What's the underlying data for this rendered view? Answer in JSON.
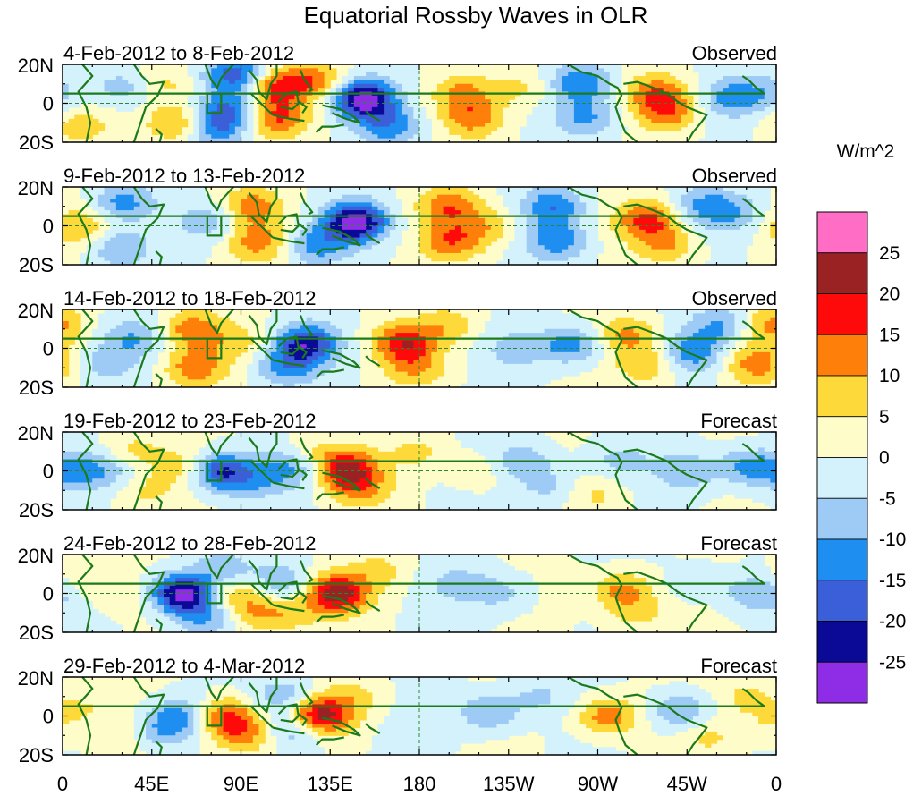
{
  "chart_data": {
    "type": "heatmap",
    "title": "Equatorial Rossby Waves in OLR",
    "colorbar": {
      "units": "W/m^2",
      "levels": [
        -30,
        -25,
        -20,
        -15,
        -10,
        -5,
        0,
        5,
        10,
        15,
        20,
        25,
        30
      ],
      "tick_labels": [
        "25",
        "20",
        "15",
        "10",
        "5",
        "0",
        "-5",
        "-10",
        "-15",
        "-20",
        "-25"
      ],
      "colors": [
        "#8f2ce6",
        "#0a0a96",
        "#3b5fd8",
        "#1e8ef0",
        "#9ecbf5",
        "#d4f2fb",
        "#fefcc8",
        "#fed93a",
        "#fe7f0a",
        "#fe0a0a",
        "#9a2222",
        "#ff6ec4"
      ]
    },
    "x_tick_labels": [
      "0",
      "45E",
      "90E",
      "135E",
      "180",
      "135W",
      "90W",
      "45W",
      "0"
    ],
    "x_tick_longitudes": [
      0,
      45,
      90,
      135,
      180,
      225,
      270,
      315,
      360
    ],
    "y_tick_labels": [
      "20N",
      "0",
      "20S"
    ],
    "y_range_deg": [
      -20,
      20
    ],
    "panels": [
      {
        "dates": "4-Feb-2012 to 8-Feb-2012",
        "status": "Observed",
        "anomalies": [
          {
            "lon": 88,
            "lat": 15,
            "value": -18
          },
          {
            "lon": 85,
            "lat": -2,
            "value": -12
          },
          {
            "lon": 78,
            "lat": -12,
            "value": -14
          },
          {
            "lon": 107,
            "lat": 8,
            "value": 16
          },
          {
            "lon": 108,
            "lat": -8,
            "value": 14
          },
          {
            "lon": 128,
            "lat": 12,
            "value": 12
          },
          {
            "lon": 152,
            "lat": 2,
            "value": -28
          },
          {
            "lon": 165,
            "lat": -12,
            "value": -12
          },
          {
            "lon": 30,
            "lat": 8,
            "value": -9
          },
          {
            "lon": 8,
            "lat": -12,
            "value": 7
          },
          {
            "lon": 58,
            "lat": -10,
            "value": 12
          },
          {
            "lon": 52,
            "lat": 10,
            "value": 7
          },
          {
            "lon": 202,
            "lat": 5,
            "value": 10
          },
          {
            "lon": 207,
            "lat": -8,
            "value": 11
          },
          {
            "lon": 232,
            "lat": 8,
            "value": 6
          },
          {
            "lon": 262,
            "lat": 10,
            "value": -14
          },
          {
            "lon": 265,
            "lat": -8,
            "value": -10
          },
          {
            "lon": 300,
            "lat": 5,
            "value": 13
          },
          {
            "lon": 306,
            "lat": -5,
            "value": 11
          },
          {
            "lon": 338,
            "lat": 3,
            "value": -11
          },
          {
            "lon": 356,
            "lat": 6,
            "value": -6
          }
        ]
      },
      {
        "dates": "9-Feb-2012 to 13-Feb-2012",
        "status": "Observed",
        "anomalies": [
          {
            "lon": 148,
            "lat": 2,
            "value": -28
          },
          {
            "lon": 128,
            "lat": -10,
            "value": -12
          },
          {
            "lon": 95,
            "lat": 10,
            "value": 12
          },
          {
            "lon": 98,
            "lat": -8,
            "value": 12
          },
          {
            "lon": 75,
            "lat": 2,
            "value": -9
          },
          {
            "lon": 30,
            "lat": 12,
            "value": -12
          },
          {
            "lon": 28,
            "lat": -12,
            "value": -10
          },
          {
            "lon": 8,
            "lat": 0,
            "value": 9
          },
          {
            "lon": 195,
            "lat": 10,
            "value": 13
          },
          {
            "lon": 196,
            "lat": -8,
            "value": 13
          },
          {
            "lon": 215,
            "lat": 0,
            "value": 8
          },
          {
            "lon": 248,
            "lat": 10,
            "value": -14
          },
          {
            "lon": 250,
            "lat": -8,
            "value": -13
          },
          {
            "lon": 295,
            "lat": 3,
            "value": 16
          },
          {
            "lon": 305,
            "lat": -10,
            "value": 10
          },
          {
            "lon": 325,
            "lat": 10,
            "value": -11
          },
          {
            "lon": 342,
            "lat": 6,
            "value": -7
          }
        ]
      },
      {
        "dates": "14-Feb-2012 to 18-Feb-2012",
        "status": "Observed",
        "anomalies": [
          {
            "lon": 123,
            "lat": 2,
            "value": -22
          },
          {
            "lon": 112,
            "lat": -10,
            "value": -11
          },
          {
            "lon": 65,
            "lat": 10,
            "value": 13
          },
          {
            "lon": 66,
            "lat": -10,
            "value": 13
          },
          {
            "lon": 88,
            "lat": 3,
            "value": 6
          },
          {
            "lon": 35,
            "lat": 5,
            "value": -9
          },
          {
            "lon": 20,
            "lat": -8,
            "value": -7
          },
          {
            "lon": 172,
            "lat": 3,
            "value": 17
          },
          {
            "lon": 178,
            "lat": -10,
            "value": 9
          },
          {
            "lon": 195,
            "lat": 12,
            "value": 8
          },
          {
            "lon": 230,
            "lat": 0,
            "value": -7
          },
          {
            "lon": 257,
            "lat": 2,
            "value": -14
          },
          {
            "lon": 285,
            "lat": 7,
            "value": 11
          },
          {
            "lon": 295,
            "lat": -8,
            "value": 10
          },
          {
            "lon": 318,
            "lat": -2,
            "value": -13
          },
          {
            "lon": 333,
            "lat": 12,
            "value": -11
          },
          {
            "lon": 350,
            "lat": -8,
            "value": 12
          },
          {
            "lon": 356,
            "lat": 12,
            "value": 11
          }
        ]
      },
      {
        "dates": "19-Feb-2012 to 23-Feb-2012",
        "status": "Forecast",
        "anomalies": [
          {
            "lon": 78,
            "lat": 0,
            "value": -22
          },
          {
            "lon": 63,
            "lat": 2,
            "value": 9
          },
          {
            "lon": 95,
            "lat": -5,
            "value": -8
          },
          {
            "lon": 35,
            "lat": 10,
            "value": 8
          },
          {
            "lon": 40,
            "lat": -10,
            "value": 7
          },
          {
            "lon": 143,
            "lat": 1,
            "value": 21
          },
          {
            "lon": 150,
            "lat": -10,
            "value": 9
          },
          {
            "lon": 115,
            "lat": 2,
            "value": -11
          },
          {
            "lon": 125,
            "lat": 10,
            "value": 6
          },
          {
            "lon": 180,
            "lat": 10,
            "value": 6
          },
          {
            "lon": 5,
            "lat": 0,
            "value": -11
          },
          {
            "lon": 25,
            "lat": 0,
            "value": -7
          },
          {
            "lon": 210,
            "lat": 0,
            "value": 5
          },
          {
            "lon": 232,
            "lat": 5,
            "value": -10
          },
          {
            "lon": 245,
            "lat": -8,
            "value": -7
          },
          {
            "lon": 280,
            "lat": 5,
            "value": -6
          },
          {
            "lon": 315,
            "lat": 0,
            "value": -9
          },
          {
            "lon": 345,
            "lat": 2,
            "value": -12
          },
          {
            "lon": 270,
            "lat": -12,
            "value": 6
          }
        ]
      },
      {
        "dates": "24-Feb-2012 to 28-Feb-2012",
        "status": "Forecast",
        "anomalies": [
          {
            "lon": 60,
            "lat": 0,
            "value": -28
          },
          {
            "lon": 72,
            "lat": -12,
            "value": -11
          },
          {
            "lon": 80,
            "lat": 12,
            "value": -9
          },
          {
            "lon": 88,
            "lat": 0,
            "value": 10
          },
          {
            "lon": 98,
            "lat": -10,
            "value": 9
          },
          {
            "lon": 138,
            "lat": 0,
            "value": 23
          },
          {
            "lon": 110,
            "lat": 5,
            "value": -9
          },
          {
            "lon": 115,
            "lat": -10,
            "value": 7
          },
          {
            "lon": 160,
            "lat": 12,
            "value": 6
          },
          {
            "lon": 200,
            "lat": 5,
            "value": -6
          },
          {
            "lon": 222,
            "lat": 0,
            "value": -7
          },
          {
            "lon": 10,
            "lat": 8,
            "value": 6
          },
          {
            "lon": 30,
            "lat": 0,
            "value": 5
          },
          {
            "lon": 282,
            "lat": 2,
            "value": 12
          },
          {
            "lon": 290,
            "lat": -10,
            "value": 7
          },
          {
            "lon": 350,
            "lat": 0,
            "value": -10
          },
          {
            "lon": 320,
            "lat": 5,
            "value": -5
          }
        ]
      },
      {
        "dates": "29-Feb-2012 to 4-Mar-2012",
        "status": "Forecast",
        "anomalies": [
          {
            "lon": 82,
            "lat": 0,
            "value": 17
          },
          {
            "lon": 92,
            "lat": -10,
            "value": 12
          },
          {
            "lon": 60,
            "lat": 0,
            "value": -13
          },
          {
            "lon": 48,
            "lat": -8,
            "value": -9
          },
          {
            "lon": 130,
            "lat": 0,
            "value": 23
          },
          {
            "lon": 112,
            "lat": 10,
            "value": -9
          },
          {
            "lon": 118,
            "lat": -8,
            "value": -11
          },
          {
            "lon": 148,
            "lat": 10,
            "value": 6
          },
          {
            "lon": 10,
            "lat": 5,
            "value": 5
          },
          {
            "lon": 30,
            "lat": -10,
            "value": 5
          },
          {
            "lon": 215,
            "lat": 2,
            "value": -11
          },
          {
            "lon": 240,
            "lat": 10,
            "value": -6
          },
          {
            "lon": 275,
            "lat": 0,
            "value": 14
          },
          {
            "lon": 312,
            "lat": 2,
            "value": -12
          },
          {
            "lon": 325,
            "lat": -10,
            "value": 6
          },
          {
            "lon": 345,
            "lat": 10,
            "value": 7
          },
          {
            "lon": 355,
            "lat": -5,
            "value": 5
          }
        ]
      }
    ]
  }
}
